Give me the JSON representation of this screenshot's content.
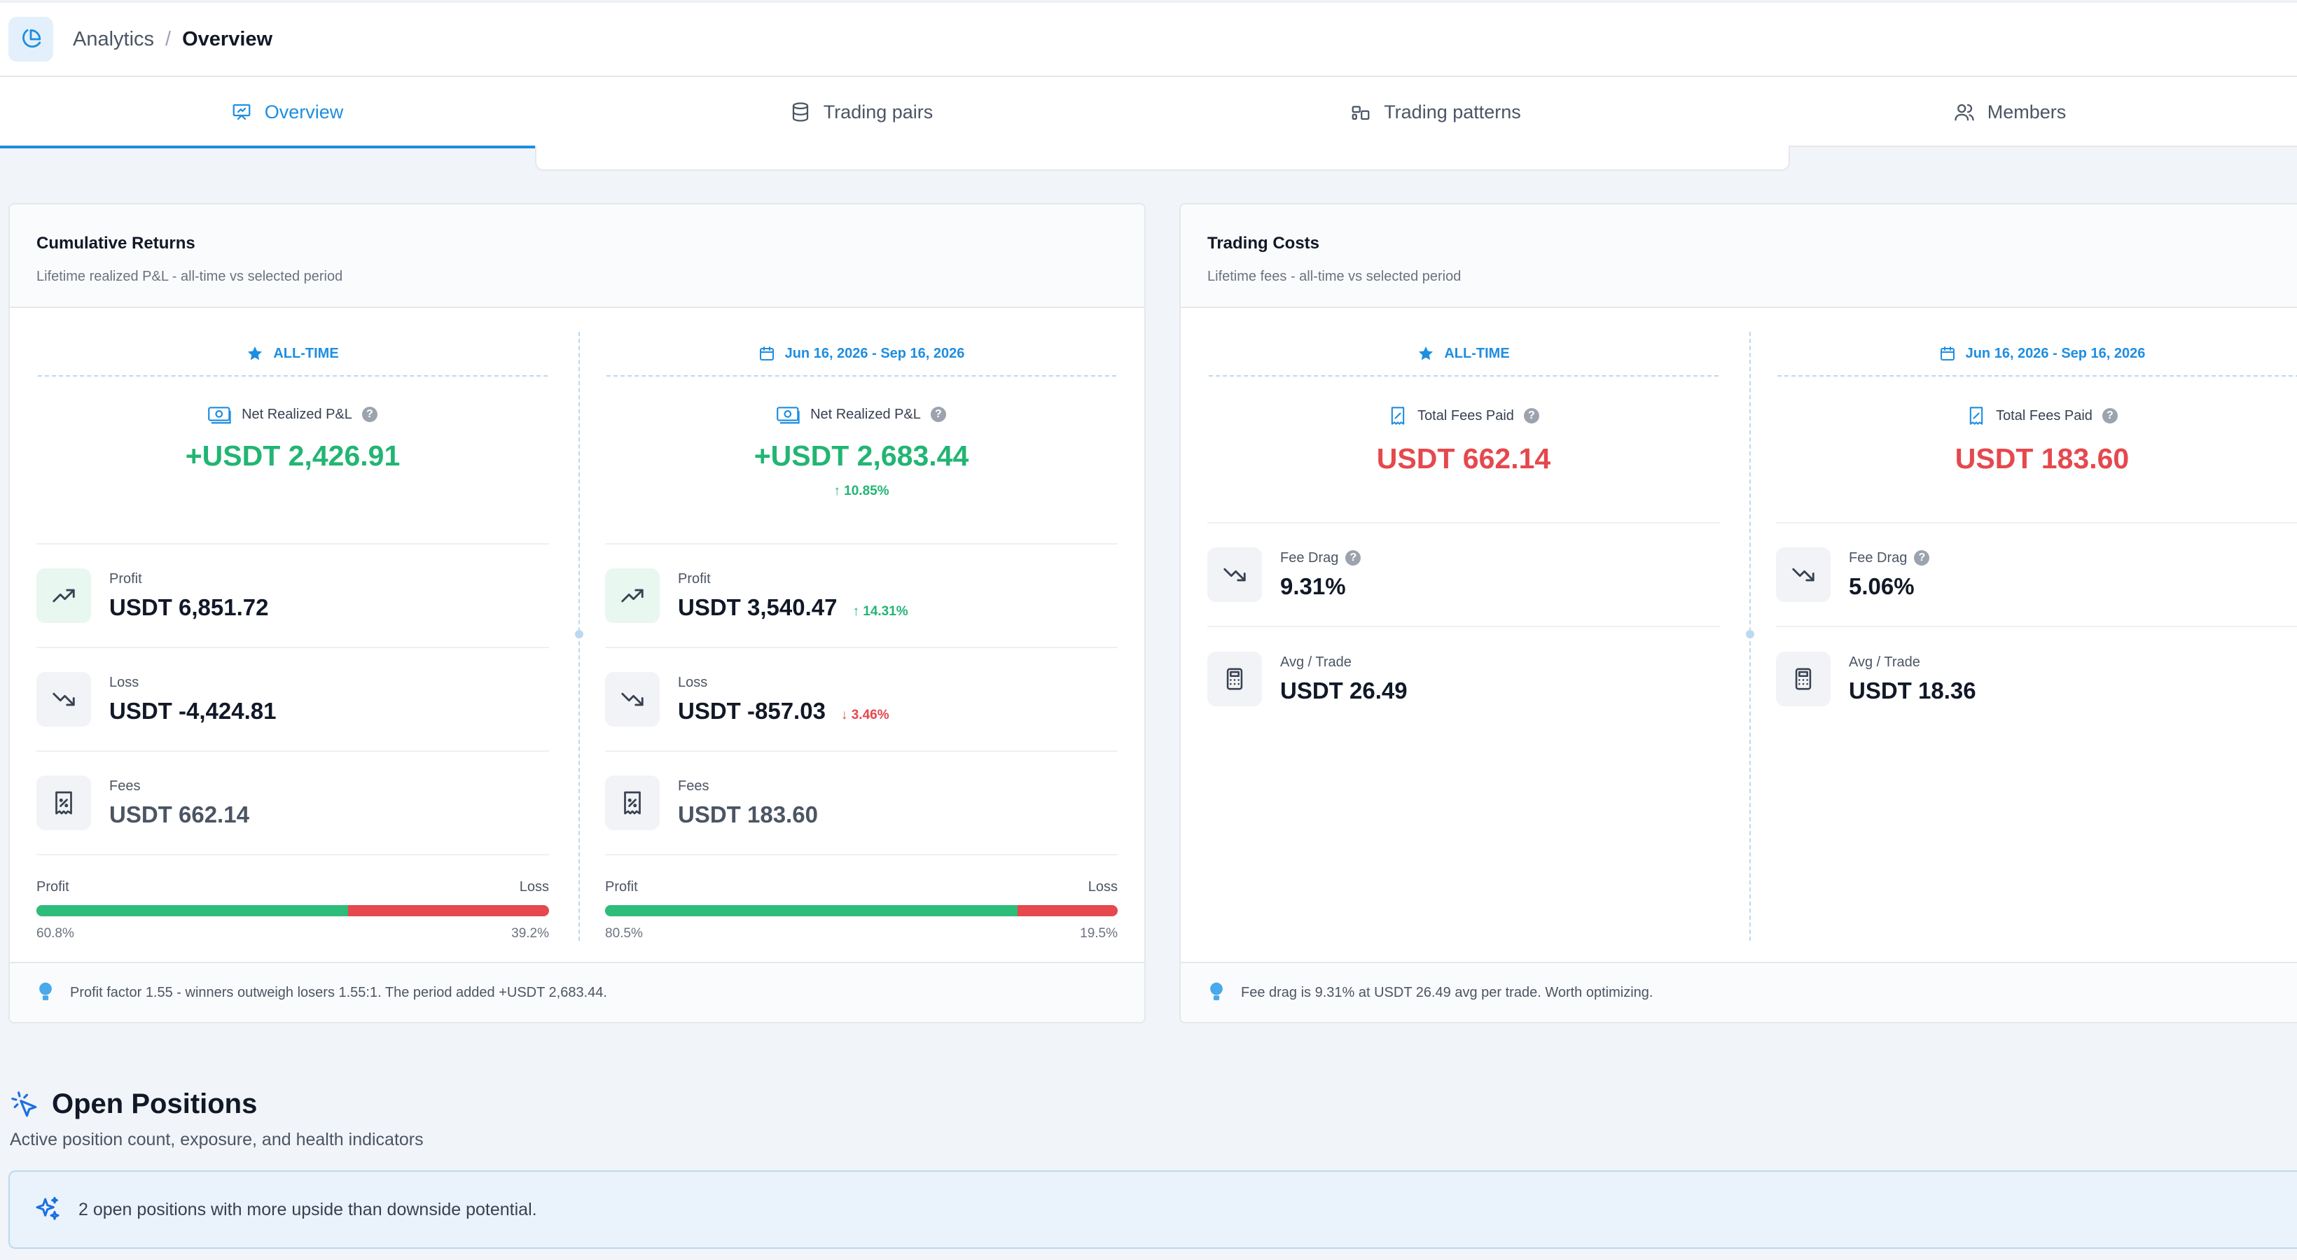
{
  "header": {
    "app_icon": "pie-chart-icon",
    "breadcrumb_root": "Analytics",
    "breadcrumb_sep": "/",
    "breadcrumb_current": "Overview"
  },
  "tabs": [
    {
      "label": "Overview",
      "icon": "presentation-icon",
      "active": true
    },
    {
      "label": "Trading pairs",
      "icon": "database-icon",
      "active": false
    },
    {
      "label": "Trading patterns",
      "icon": "shapes-icon",
      "active": false
    },
    {
      "label": "Members",
      "icon": "users-icon",
      "active": false
    }
  ],
  "returns": {
    "title": "Cumulative Returns",
    "subtitle": "Lifetime realized P&L - all-time vs selected period",
    "alltime": {
      "header": "ALL-TIME",
      "hero_label": "Net Realized P&L",
      "hero_value": "+USDT 2,426.91",
      "profit_label": "Profit",
      "profit_value": "USDT 6,851.72",
      "loss_label": "Loss",
      "loss_value": "USDT -4,424.81",
      "fees_label": "Fees",
      "fees_value": "USDT 662.14",
      "bar_left": "Profit",
      "bar_right": "Loss",
      "profit_pct": "60.8%",
      "loss_pct": "39.2%",
      "profit_share": 0.608
    },
    "period": {
      "header": "Jun 16, 2026 - Sep 16, 2026",
      "hero_label": "Net Realized P&L",
      "hero_value": "+USDT 2,683.44",
      "hero_delta": "10.85%",
      "profit_label": "Profit",
      "profit_value": "USDT 3,540.47",
      "profit_change": "14.31%",
      "loss_label": "Loss",
      "loss_value": "USDT -857.03",
      "loss_change": "3.46%",
      "fees_label": "Fees",
      "fees_value": "USDT 183.60",
      "bar_left": "Profit",
      "bar_right": "Loss",
      "profit_pct": "80.5%",
      "loss_pct": "19.5%",
      "profit_share": 0.805
    },
    "footer": "Profit factor 1.55 - winners outweigh losers 1.55:1. The period added +USDT 2,683.44."
  },
  "costs": {
    "title": "Trading Costs",
    "subtitle": "Lifetime fees - all-time vs selected period",
    "alltime": {
      "header": "ALL-TIME",
      "hero_label": "Total Fees Paid",
      "hero_value": "USDT 662.14",
      "drag_label": "Fee Drag",
      "drag_value": "9.31%",
      "avg_label": "Avg / Trade",
      "avg_value": "USDT 26.49"
    },
    "period": {
      "header": "Jun 16, 2026 - Sep 16, 2026",
      "hero_label": "Total Fees Paid",
      "hero_value": "USDT 183.60",
      "drag_label": "Fee Drag",
      "drag_value": "5.06%",
      "avg_label": "Avg / Trade",
      "avg_value": "USDT 18.36"
    },
    "footer": "Fee drag is 9.31% at USDT 26.49 avg per trade. Worth optimizing."
  },
  "positions": {
    "title": "Open Positions",
    "subtitle": "Active position count, exposure, and health indicators",
    "banner": "2 open positions with more upside than downside potential."
  },
  "colors": {
    "accent": "#1d8ee0",
    "profit": "#22b573",
    "loss": "#e5484d"
  }
}
